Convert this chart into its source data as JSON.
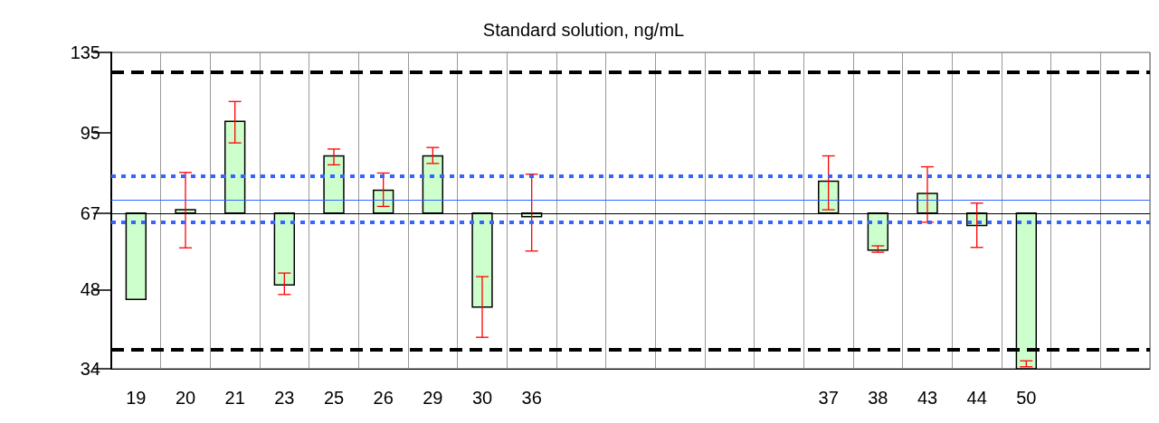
{
  "chart_data": {
    "type": "bar",
    "title": "Standard solution, ng/mL",
    "categories": [
      "19",
      "20",
      "21",
      "23",
      "25",
      "26",
      "29",
      "30",
      "36",
      null,
      null,
      null,
      null,
      null,
      "37",
      "38",
      "43",
      "44",
      "50",
      null,
      null
    ],
    "values": [
      -21,
      1,
      33,
      -18,
      19,
      7,
      19,
      -22.5,
      -1,
      null,
      null,
      null,
      null,
      null,
      10,
      -10,
      6,
      -3.5,
      -33,
      null,
      null
    ],
    "base": [
      67,
      67,
      67,
      67,
      67,
      67,
      67,
      67,
      67,
      null,
      null,
      null,
      null,
      null,
      67,
      67,
      67,
      67,
      67,
      null,
      null
    ],
    "errors": [
      null,
      [
        57.6,
        80
      ],
      [
        91,
        109
      ],
      [
        47,
        51.6
      ],
      [
        82.7,
        88.6
      ],
      [
        69,
        79.8
      ],
      [
        83.2,
        89.2
      ],
      [
        39,
        50.8
      ],
      [
        56.8,
        79.4
      ],
      null,
      null,
      null,
      null,
      null,
      [
        68,
        86
      ],
      [
        56.5,
        58.1
      ],
      [
        64.4,
        82
      ],
      [
        57.7,
        70
      ],
      [
        34.3,
        35.2
      ],
      null,
      null
    ],
    "color": "#ccffcc",
    "log": "y",
    "ylim": [
      34,
      135
    ],
    "yticks": [
      34,
      48,
      67,
      95,
      135
    ],
    "grid": "x",
    "ref_lines": [
      {
        "axis": "y",
        "value": 124,
        "color": "#000000",
        "line_style": "dashed"
      },
      {
        "axis": "y",
        "value": 37,
        "color": "#000000",
        "line_style": "dashed"
      },
      {
        "axis": "y",
        "value": 78.7,
        "color": "#3366ff",
        "line_style": "dotted"
      },
      {
        "axis": "y",
        "value": 64.4,
        "color": "#3366ff",
        "line_style": "dotted"
      },
      {
        "axis": "y",
        "value": 71,
        "color": "#3366ff",
        "line_style": "solid"
      },
      {
        "axis": "y",
        "value": 67,
        "color": "#000000",
        "line_style": "solid"
      }
    ]
  }
}
